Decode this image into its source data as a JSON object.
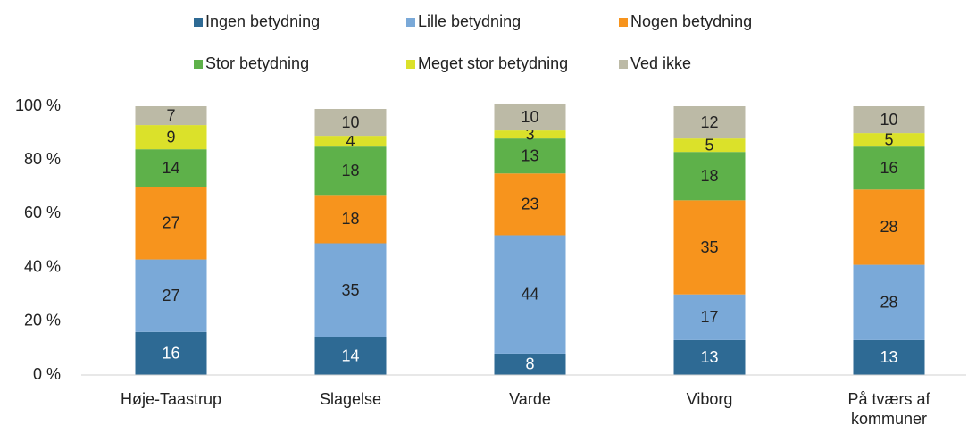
{
  "chart_data": {
    "type": "stacked_bar",
    "categories": [
      "Høje-Taastrup",
      "Slagelse",
      "Varde",
      "Viborg",
      "På tværs af kommuner"
    ],
    "series": [
      {
        "name": "Ingen betydning",
        "color": "#2e6a94",
        "values": [
          16,
          14,
          8,
          13,
          13
        ]
      },
      {
        "name": "Lille betydning",
        "color": "#7aa9d8",
        "values": [
          27,
          35,
          44,
          17,
          28
        ]
      },
      {
        "name": "Nogen betydning",
        "color": "#f7941d",
        "values": [
          27,
          18,
          23,
          35,
          28
        ]
      },
      {
        "name": "Stor betydning",
        "color": "#5eb14a",
        "values": [
          14,
          18,
          13,
          18,
          16
        ]
      },
      {
        "name": "Meget stor betydning",
        "color": "#dbe12a",
        "values": [
          9,
          4,
          3,
          5,
          5
        ]
      },
      {
        "name": "Ved ikke",
        "color": "#bcbaa6",
        "values": [
          7,
          10,
          10,
          12,
          10
        ]
      }
    ],
    "ylim": [
      0,
      100
    ],
    "yticks": [
      {
        "value": 0,
        "label": "0 %"
      },
      {
        "value": 20,
        "label": "20 %"
      },
      {
        "value": 40,
        "label": "40 %"
      },
      {
        "value": 60,
        "label": "60 %"
      },
      {
        "value": 80,
        "label": "80 %"
      },
      {
        "value": 100,
        "label": "100 %"
      }
    ],
    "legend": "top"
  }
}
